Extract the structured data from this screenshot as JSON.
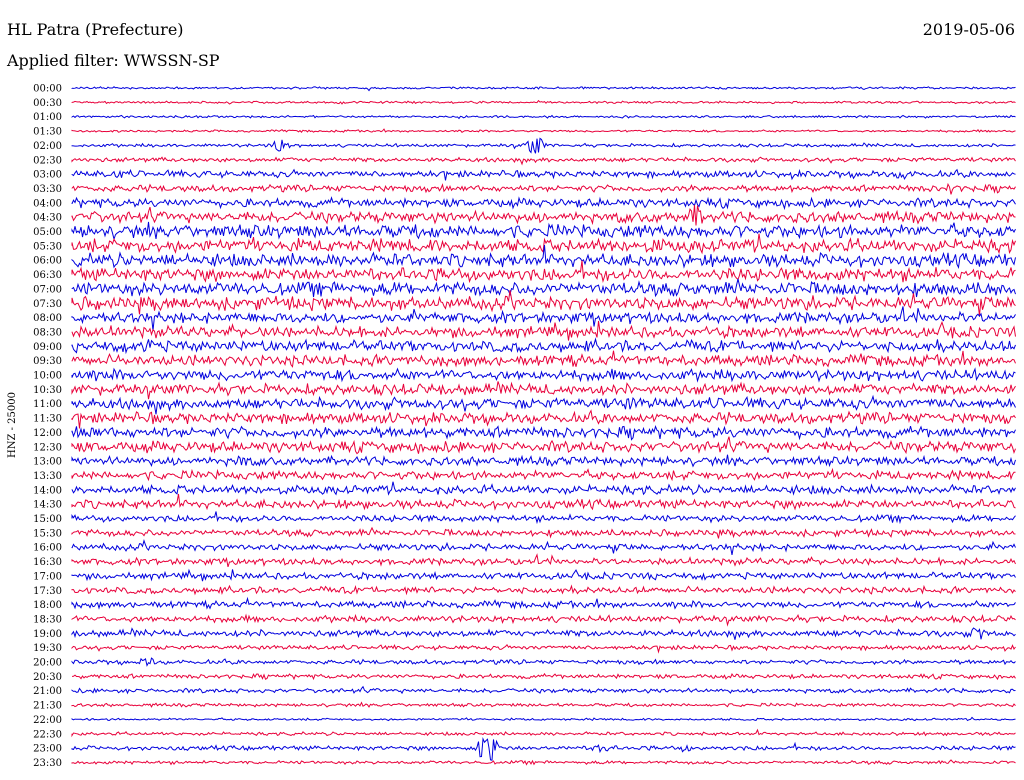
{
  "header": {
    "station": "HL Patra (Prefecture)",
    "date": "2019-05-06",
    "filter": "Applied filter: WWSSN-SP"
  },
  "chart_data": {
    "type": "line",
    "title": "HL Patra (Prefecture)",
    "ylabel": "HNZ - 25000",
    "tick_labels": [
      "00:00",
      "00:30",
      "01:00",
      "01:30",
      "02:00",
      "02:30",
      "03:00",
      "03:30",
      "04:00",
      "04:30",
      "05:00",
      "05:30",
      "06:00",
      "06:30",
      "07:00",
      "07:30",
      "08:00",
      "08:30",
      "09:00",
      "09:30",
      "10:00",
      "10:30",
      "11:00",
      "11:30",
      "12:00",
      "12:30",
      "13:00",
      "13:30",
      "14:00",
      "14:30",
      "15:00",
      "15:30",
      "16:00",
      "16:30",
      "17:00",
      "17:30",
      "18:00",
      "18:30",
      "19:00",
      "19:30",
      "20:00",
      "20:30",
      "21:00",
      "21:30",
      "22:00",
      "22:30",
      "23:00",
      "23:30"
    ],
    "trace_colors": [
      "#0000dd",
      "#e8003a"
    ],
    "noise_level": [
      1,
      1,
      1,
      1,
      1.5,
      2,
      3,
      3,
      4,
      5,
      6,
      6,
      6,
      6,
      6,
      6,
      5,
      5,
      5,
      5,
      5,
      5,
      5,
      5,
      5,
      5,
      4,
      4,
      4,
      4,
      3,
      3,
      3,
      3,
      3,
      3,
      3,
      3,
      3,
      2,
      2,
      2,
      2,
      1.5,
      1,
      1.5,
      2,
      1.5
    ],
    "events": [
      {
        "row": 4,
        "x": 0.49,
        "amp": 12
      },
      {
        "row": 4,
        "x": 0.22,
        "amp": 8
      },
      {
        "row": 6,
        "x": 0.05,
        "amp": 6
      },
      {
        "row": 6,
        "x": 0.88,
        "amp": 7
      },
      {
        "row": 7,
        "x": 0.93,
        "amp": 8
      },
      {
        "row": 9,
        "x": 0.66,
        "amp": 14
      },
      {
        "row": 9,
        "x": 0.02,
        "amp": 8
      },
      {
        "row": 11,
        "x": 0.62,
        "amp": 10
      },
      {
        "row": 14,
        "x": 0.98,
        "amp": 8
      },
      {
        "row": 18,
        "x": 0.08,
        "amp": 8
      },
      {
        "row": 22,
        "x": 0.59,
        "amp": 8
      },
      {
        "row": 24,
        "x": 0.02,
        "amp": 8
      },
      {
        "row": 26,
        "x": 0.18,
        "amp": 8
      },
      {
        "row": 38,
        "x": 0.96,
        "amp": 8
      },
      {
        "row": 40,
        "x": 0.08,
        "amp": 6
      },
      {
        "row": 46,
        "x": 0.44,
        "amp": 22
      },
      {
        "row": 46,
        "x": 0.56,
        "amp": 6
      },
      {
        "row": 46,
        "x": 0.65,
        "amp": 5
      }
    ]
  }
}
